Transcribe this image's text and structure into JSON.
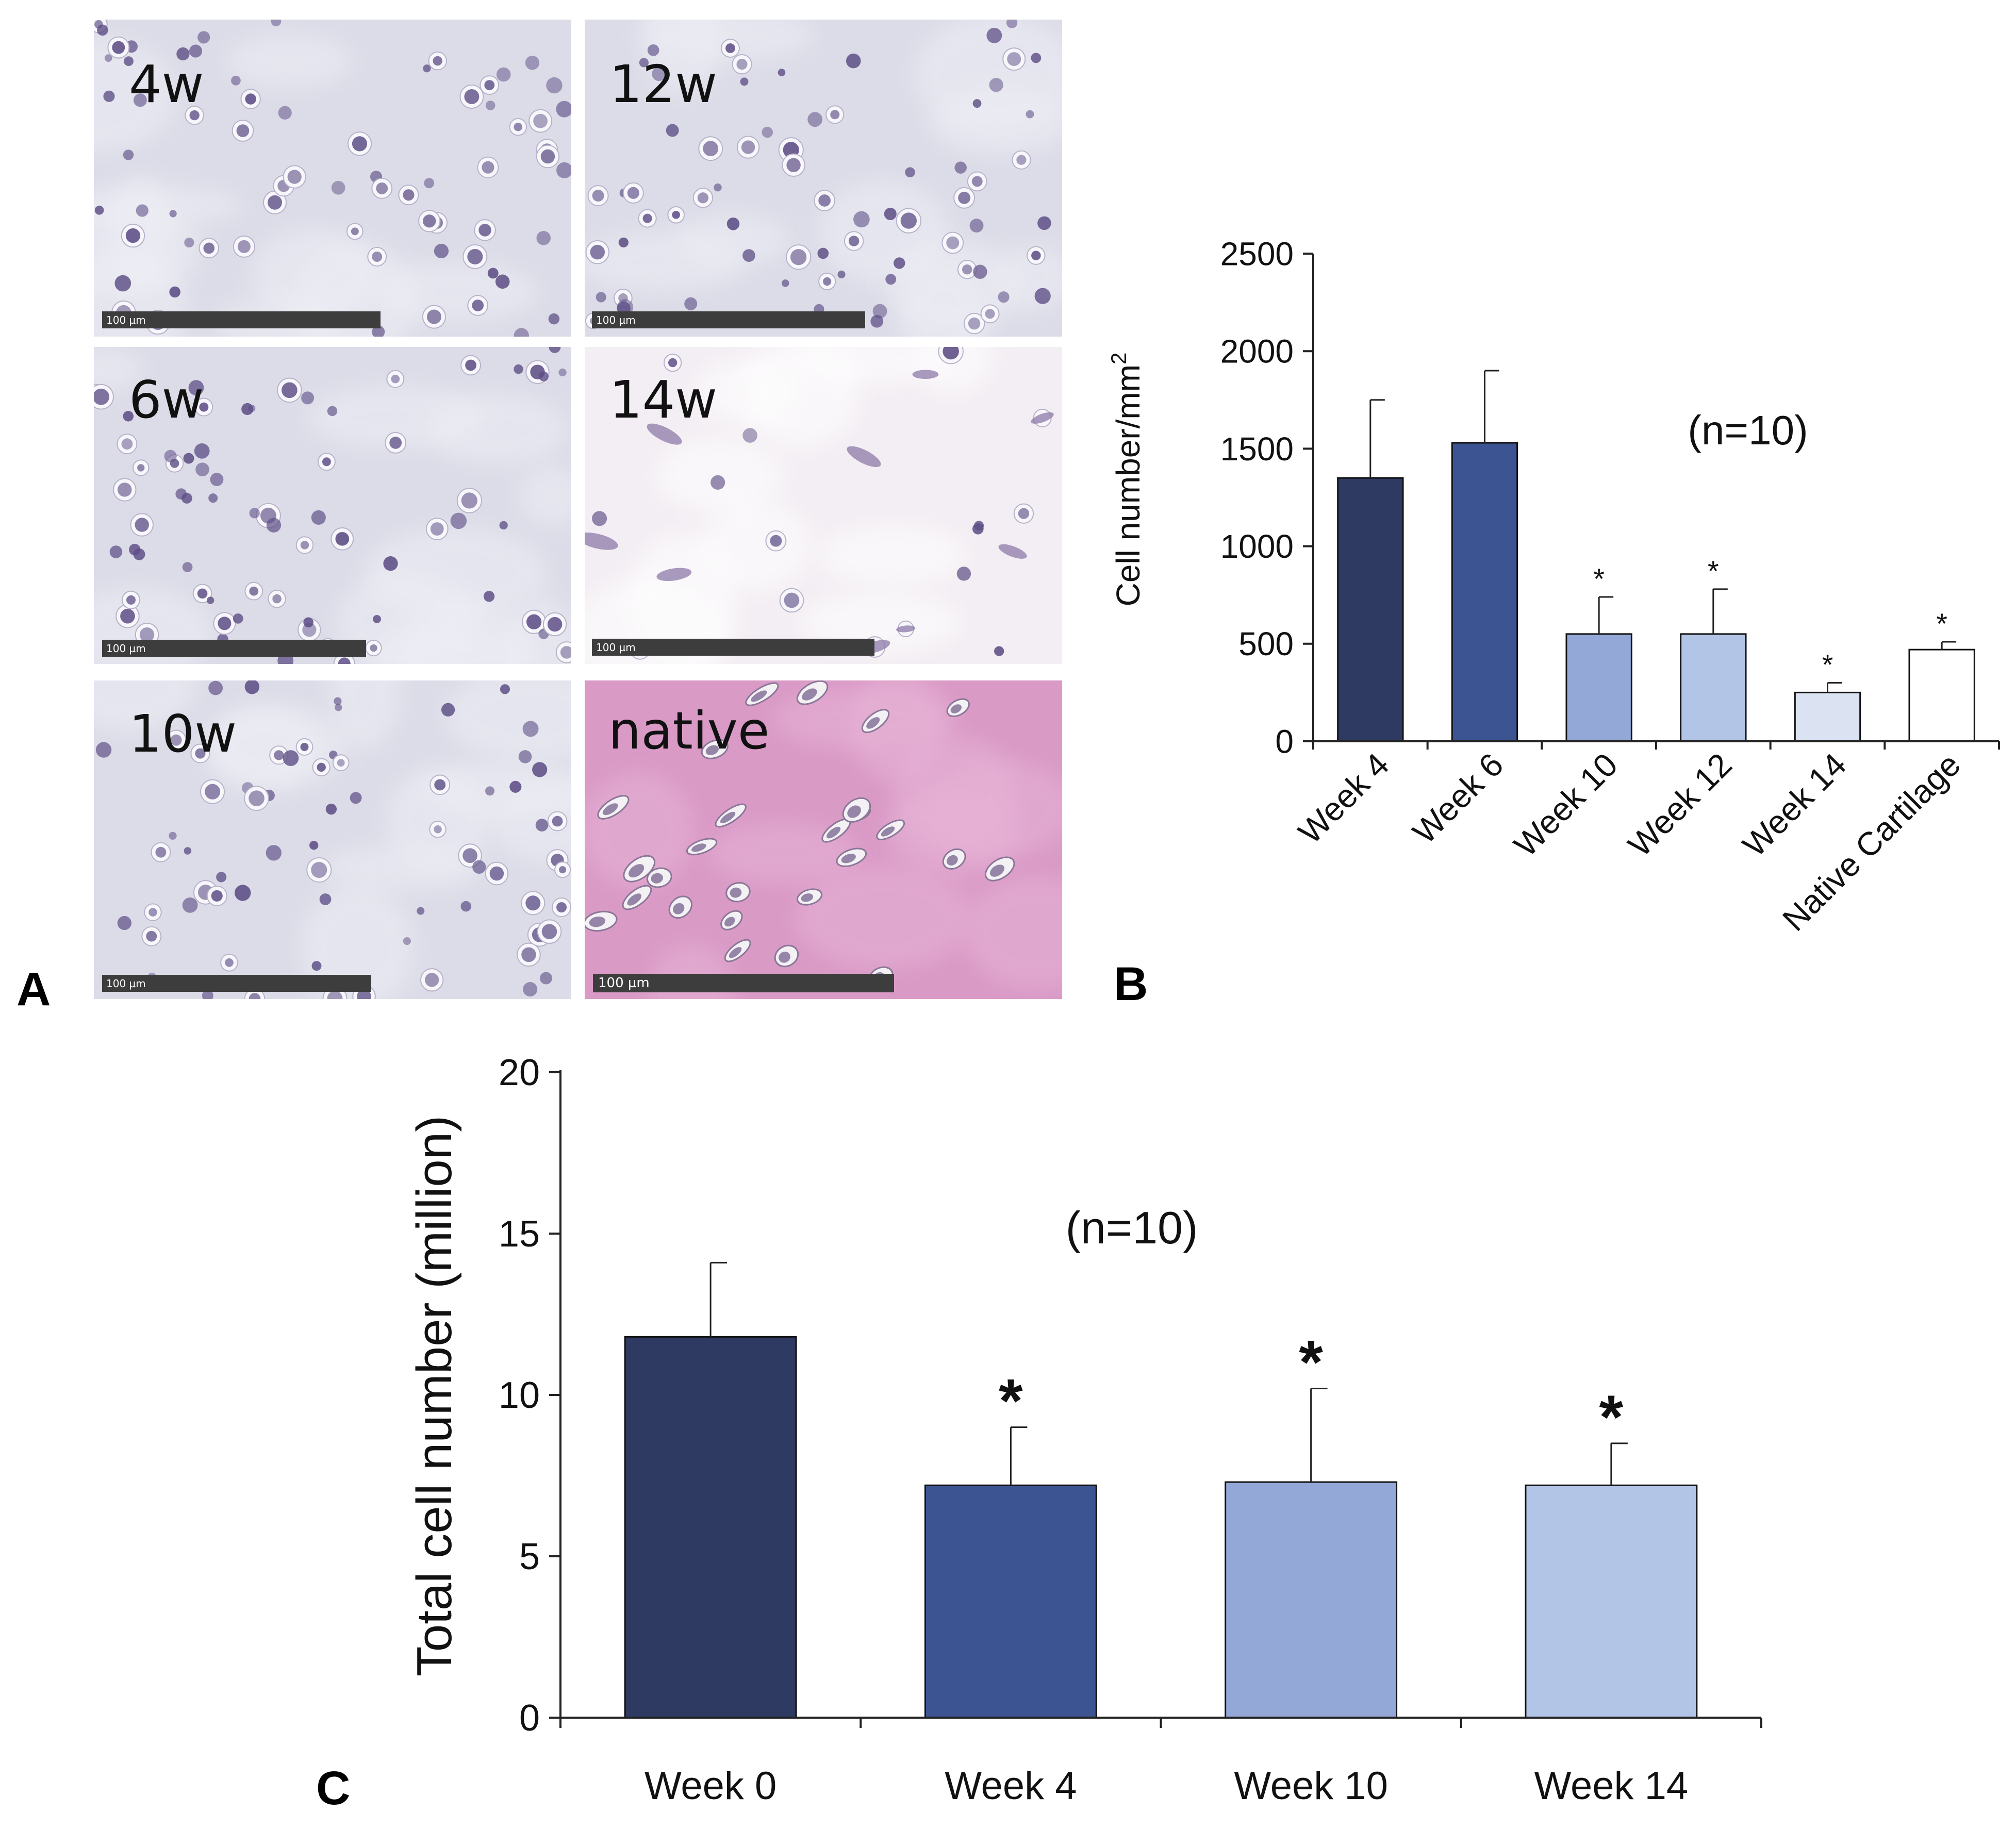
{
  "panels": {
    "a": {
      "letter": "A",
      "images": [
        {
          "label": "4w",
          "scale_bar": "100 µm",
          "tone": "stained"
        },
        {
          "label": "12w",
          "scale_bar": "100 µm",
          "tone": "stained"
        },
        {
          "label": "6w",
          "scale_bar": "100 µm",
          "tone": "stained"
        },
        {
          "label": "14w",
          "scale_bar": "100 µm",
          "tone": "pale"
        },
        {
          "label": "10w",
          "scale_bar": "100 µm",
          "tone": "stained"
        },
        {
          "label": "native",
          "scale_bar": "100 µm",
          "tone": "pink"
        }
      ],
      "colors": {
        "stained_bg": "#dcdce8",
        "pale_bg": "#f3eef3",
        "pink_bg": "#d99ac6",
        "nucleus": "#5e4f86"
      }
    },
    "b": {
      "letter": "B"
    },
    "c": {
      "letter": "C"
    }
  },
  "chart_data": [
    {
      "panel": "B",
      "type": "bar",
      "title": "",
      "xlabel": "",
      "ylabel": "Cell number/mm",
      "ylabel_superscript": "2",
      "annotation": "(n=10)",
      "categories": [
        "Week 4",
        "Week 6",
        "Week 10",
        "Week 12",
        "Week 14",
        "Native Cartilage"
      ],
      "values": [
        1350,
        1530,
        550,
        550,
        250,
        470
      ],
      "errors": [
        400,
        370,
        190,
        230,
        50,
        40
      ],
      "significance": [
        "",
        "",
        "*",
        "*",
        "*",
        "*"
      ],
      "colors": [
        "#2e3a62",
        "#3c5491",
        "#94a8d8",
        "#b3c5e6",
        "#dbe3f3",
        "#ffffff"
      ],
      "ylim": [
        0,
        2500
      ],
      "yticks": [
        0,
        500,
        1000,
        1500,
        2000,
        2500
      ],
      "grid": false
    },
    {
      "panel": "C",
      "type": "bar",
      "title": "",
      "xlabel": "",
      "ylabel": "Total cell number (million)",
      "annotation": "(n=10)",
      "categories": [
        "Week 0",
        "Week 4",
        "Week 10",
        "Week 14"
      ],
      "values": [
        11.8,
        7.2,
        7.3,
        7.2
      ],
      "errors": [
        2.3,
        1.8,
        2.9,
        1.3
      ],
      "significance": [
        "",
        "*",
        "*",
        "*"
      ],
      "colors": [
        "#2e3a62",
        "#3c5491",
        "#94a8d8",
        "#b3c5e6"
      ],
      "ylim": [
        0,
        20
      ],
      "yticks": [
        0,
        5,
        10,
        15,
        20
      ],
      "grid": false
    }
  ]
}
